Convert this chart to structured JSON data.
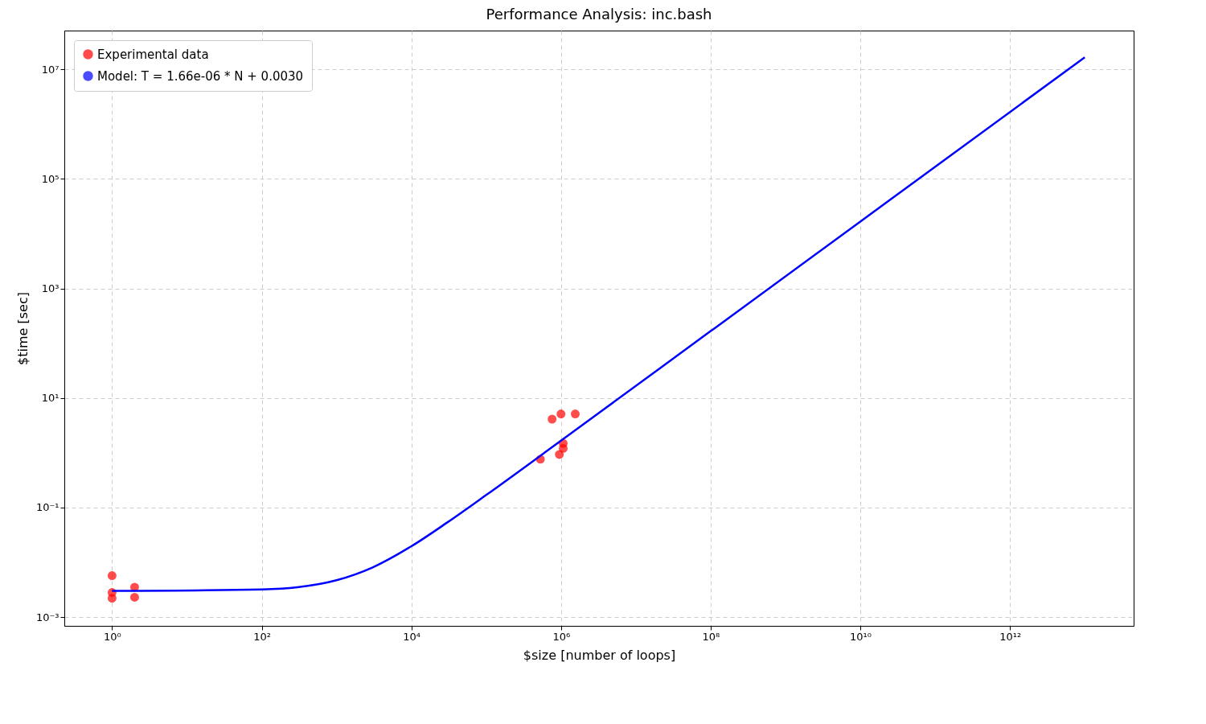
{
  "chart_data": {
    "type": "scatter",
    "title": "Performance Analysis: inc.bash",
    "xlabel": "$size [number of loops]",
    "ylabel": "$time [sec]",
    "log": "xy",
    "grid": true,
    "legend": "top left",
    "marker": "circle",
    "xlim": [
      0.23,
      45000000000000
    ],
    "ylim": [
      0.00069,
      51000000
    ],
    "xticks": [
      {
        "value": 1,
        "label": "10⁰"
      },
      {
        "value": 100,
        "label": "10²"
      },
      {
        "value": 10000,
        "label": "10⁴"
      },
      {
        "value": 1000000,
        "label": "10⁶"
      },
      {
        "value": 100000000,
        "label": "10⁸"
      },
      {
        "value": 10000000000,
        "label": "10¹⁰"
      },
      {
        "value": 1000000000000,
        "label": "10¹²"
      }
    ],
    "yticks": [
      {
        "value": 0.001,
        "label": "10⁻³"
      },
      {
        "value": 0.1,
        "label": "10⁻¹"
      },
      {
        "value": 10,
        "label": "10¹"
      },
      {
        "value": 1000,
        "label": "10³"
      },
      {
        "value": 100000,
        "label": "10⁵"
      },
      {
        "value": 10000000,
        "label": "10⁷"
      }
    ],
    "series": [
      {
        "name": "Experimental data",
        "type": "scatter",
        "color": "#ff0000",
        "x": [
          1,
          1,
          1,
          2,
          2,
          530000,
          760000,
          1000000,
          1550000,
          1070000,
          1070000,
          950000
        ],
        "values": [
          0.0057,
          0.0028,
          0.0022,
          0.0035,
          0.0023,
          0.76,
          4.1,
          5.1,
          5.1,
          1.48,
          1.2,
          0.93
        ]
      },
      {
        "name": "Model: T = 1.66e-06 * N + 0.0030",
        "type": "line",
        "color": "#0000ff",
        "line_style": "solid",
        "marker": "none",
        "x": [
          1,
          100,
          300,
          1000,
          3000,
          10000,
          30000,
          100000,
          1000000,
          100000000,
          10000000000,
          10000000000000
        ],
        "values": [
          0.003,
          0.0032,
          0.0035,
          0.0047,
          0.008,
          0.0196,
          0.053,
          0.169,
          1.66,
          166,
          16600,
          16600000
        ]
      }
    ]
  }
}
